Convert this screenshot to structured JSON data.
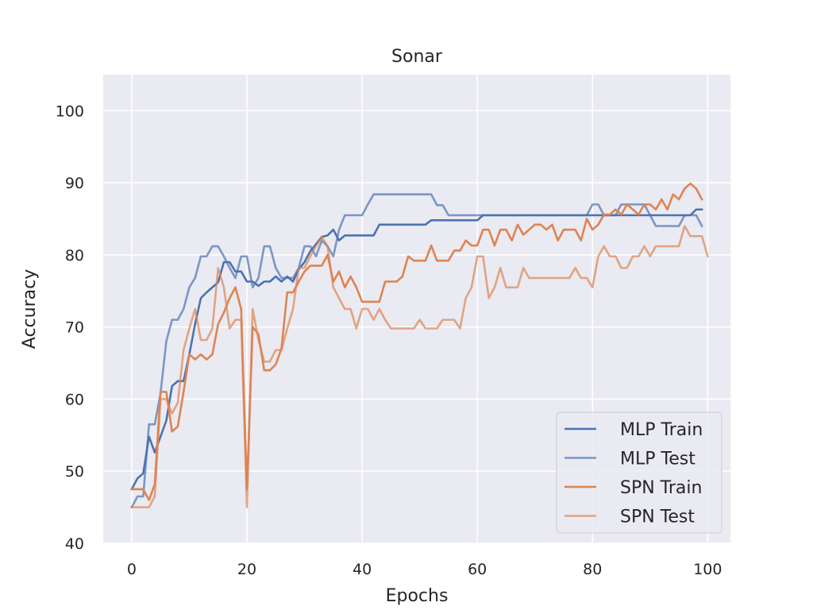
{
  "chart_data": {
    "type": "line",
    "title": "Sonar",
    "xlabel": "Epochs",
    "ylabel": "Accuracy",
    "xlim": [
      -4.95,
      103.95
    ],
    "ylim": [
      40,
      105
    ],
    "xticks": [
      0,
      20,
      40,
      60,
      80,
      100
    ],
    "yticks": [
      40,
      50,
      60,
      70,
      80,
      90,
      100
    ],
    "grid": true,
    "legend_position": "lower-right",
    "colors": {
      "plot_bg": "#eaeaf2",
      "grid": "#ffffff",
      "mlp": "#4c72b0",
      "spn": "#dd8452"
    },
    "series": [
      {
        "name": "MLP Train",
        "color": "#4c72b0",
        "opacity": 1,
        "y": [
          47.5,
          49.0,
          49.7,
          54.8,
          52.6,
          54.8,
          57.0,
          61.8,
          62.5,
          62.5,
          66.2,
          70.4,
          74.0,
          74.8,
          75.5,
          76.2,
          79.0,
          79.0,
          77.7,
          77.7,
          76.3,
          76.3,
          75.7,
          76.3,
          76.3,
          77.0,
          76.3,
          77.0,
          76.3,
          78.0,
          79.0,
          80.5,
          81.5,
          82.5,
          82.7,
          83.5,
          82.0,
          82.7,
          82.7,
          82.7,
          82.7,
          82.7,
          82.7,
          84.2,
          84.2,
          84.2,
          84.2,
          84.2,
          84.2,
          84.2,
          84.2,
          84.2,
          84.8,
          84.8,
          84.8,
          84.8,
          84.8,
          84.8,
          84.8,
          84.8,
          84.8,
          85.5,
          85.5,
          85.5,
          85.5,
          85.5,
          85.5,
          85.5,
          85.5,
          85.5,
          85.5,
          85.5,
          85.5,
          85.5,
          85.5,
          85.5,
          85.5,
          85.5,
          85.5,
          85.5,
          85.5,
          85.5,
          85.5,
          85.5,
          85.5,
          85.5,
          85.5,
          85.5,
          85.5,
          85.5,
          85.5,
          85.5,
          85.5,
          85.5,
          85.5,
          85.5,
          85.5,
          85.5,
          86.3,
          86.3
        ]
      },
      {
        "name": "MLP Test",
        "color": "#4c72b0",
        "opacity": 0.7,
        "y": [
          45.0,
          46.5,
          46.5,
          56.5,
          56.5,
          60.8,
          68.0,
          71.0,
          71.0,
          72.5,
          75.5,
          76.8,
          79.8,
          79.8,
          81.2,
          81.2,
          79.8,
          78.2,
          76.8,
          79.8,
          79.8,
          75.5,
          76.8,
          81.2,
          81.2,
          78.2,
          76.8,
          76.8,
          76.8,
          78.2,
          81.2,
          81.2,
          79.8,
          82.0,
          81.2,
          79.8,
          83.5,
          85.5,
          85.5,
          85.5,
          85.5,
          87.0,
          88.4,
          88.4,
          88.4,
          88.4,
          88.4,
          88.4,
          88.4,
          88.4,
          88.4,
          88.4,
          88.4,
          86.9,
          86.9,
          85.5,
          85.5,
          85.5,
          85.5,
          85.5,
          85.5,
          85.5,
          85.5,
          85.5,
          85.5,
          85.5,
          85.5,
          85.5,
          85.5,
          85.5,
          85.5,
          85.5,
          85.5,
          85.5,
          85.5,
          85.5,
          85.5,
          85.5,
          85.5,
          85.5,
          87.0,
          87.0,
          85.5,
          85.5,
          85.5,
          87.0,
          87.0,
          87.0,
          87.0,
          87.0,
          85.5,
          84.0,
          84.0,
          84.0,
          84.0,
          84.0,
          85.5,
          85.5,
          85.5,
          84.0
        ]
      },
      {
        "name": "SPN Train",
        "color": "#dd8452",
        "opacity": 1,
        "y": [
          47.5,
          47.5,
          47.5,
          46.0,
          48.2,
          61.0,
          61.0,
          55.5,
          56.2,
          61.0,
          66.2,
          65.5,
          66.2,
          65.5,
          66.2,
          70.4,
          72.0,
          74.0,
          75.5,
          72.5,
          47.5,
          70.0,
          69.0,
          64.0,
          64.0,
          64.8,
          67.0,
          74.8,
          74.8,
          76.3,
          77.7,
          78.5,
          78.5,
          78.5,
          80.0,
          76.3,
          77.7,
          75.5,
          77.0,
          75.5,
          73.5,
          73.5,
          73.5,
          73.5,
          76.3,
          76.3,
          76.3,
          77.0,
          79.8,
          79.2,
          79.2,
          79.2,
          81.3,
          79.2,
          79.2,
          79.2,
          80.6,
          80.6,
          82.0,
          81.3,
          81.3,
          83.5,
          83.5,
          81.3,
          83.5,
          83.5,
          82.0,
          84.2,
          82.8,
          83.5,
          84.2,
          84.2,
          83.5,
          84.2,
          82.0,
          83.5,
          83.5,
          83.5,
          82.0,
          85.0,
          83.5,
          84.2,
          85.6,
          85.6,
          86.3,
          85.6,
          87.0,
          86.3,
          85.6,
          87.0,
          87.0,
          86.3,
          87.7,
          86.3,
          88.4,
          87.7,
          89.2,
          89.9,
          89.2,
          87.7
        ]
      },
      {
        "name": "SPN Test",
        "color": "#dd8452",
        "opacity": 0.7,
        "y": [
          45.0,
          45.0,
          45.0,
          45.0,
          46.5,
          60.0,
          60.0,
          58.0,
          59.5,
          66.8,
          69.8,
          72.5,
          68.2,
          68.2,
          69.8,
          78.2,
          75.5,
          69.8,
          71.0,
          71.0,
          45.0,
          72.5,
          68.2,
          65.2,
          65.2,
          66.8,
          66.8,
          69.8,
          72.5,
          78.2,
          78.2,
          79.8,
          81.2,
          82.5,
          81.2,
          75.5,
          74.0,
          72.5,
          72.5,
          69.8,
          72.5,
          72.5,
          71.0,
          72.5,
          71.0,
          69.8,
          69.8,
          69.8,
          69.8,
          69.8,
          71.0,
          69.8,
          69.8,
          69.8,
          71.0,
          71.0,
          71.0,
          69.8,
          74.0,
          75.5,
          79.8,
          79.8,
          74.0,
          75.5,
          78.2,
          75.5,
          75.5,
          75.5,
          78.2,
          76.8,
          76.8,
          76.8,
          76.8,
          76.8,
          76.8,
          76.8,
          76.8,
          78.2,
          76.8,
          76.8,
          75.5,
          79.8,
          81.2,
          79.8,
          79.8,
          78.2,
          78.2,
          79.8,
          79.8,
          81.2,
          79.8,
          81.2,
          81.2,
          81.2,
          81.2,
          81.2,
          84.0,
          82.6,
          82.6,
          82.6,
          79.8
        ]
      }
    ]
  }
}
